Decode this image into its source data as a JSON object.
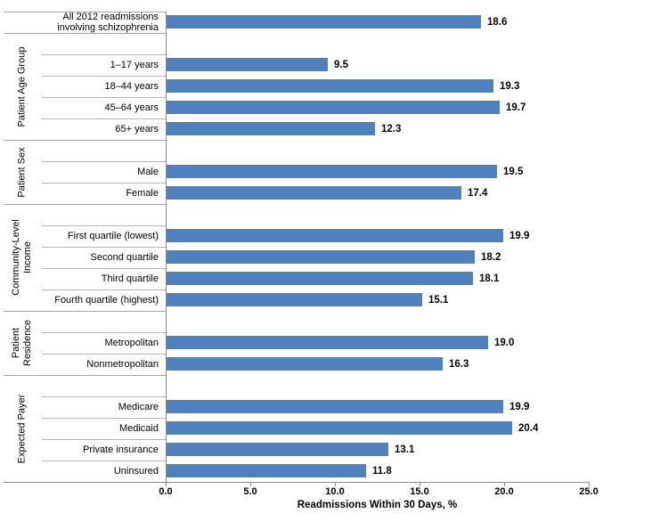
{
  "chart_data": {
    "type": "bar",
    "orientation": "horizontal",
    "xlabel": "Readmissions Within 30 Days, %",
    "xlim": [
      0,
      25
    ],
    "xtick_step": 5,
    "xticks": [
      "0.0",
      "5.0",
      "10.0",
      "15.0",
      "20.0",
      "25.0"
    ],
    "bar_color": "#4F81BD",
    "separator_color": "#A6A6A6",
    "axis_color": "#8C8C8C",
    "grid": false,
    "legend": false,
    "groups": [
      {
        "label": null,
        "spacer": false,
        "items": [
          {
            "label": "All 2012 readmissions\ninvolving schizophrenia",
            "value": 18.6,
            "value_label": "18.6"
          }
        ]
      },
      {
        "label": "Patient Age Group",
        "spacer": true,
        "items": [
          {
            "label": "1–17 years",
            "value": 9.5,
            "value_label": "9.5"
          },
          {
            "label": "18–44 years",
            "value": 19.3,
            "value_label": "19.3"
          },
          {
            "label": "45–64 years",
            "value": 19.7,
            "value_label": "19.7"
          },
          {
            "label": "65+ years",
            "value": 12.3,
            "value_label": "12.3"
          }
        ]
      },
      {
        "label": "Patient Sex",
        "spacer": true,
        "items": [
          {
            "label": "Male",
            "value": 19.5,
            "value_label": "19.5"
          },
          {
            "label": "Female",
            "value": 17.4,
            "value_label": "17.4"
          }
        ]
      },
      {
        "label": "Community-Level\nIncome",
        "spacer": true,
        "items": [
          {
            "label": "First quartile (lowest)",
            "value": 19.9,
            "value_label": "19.9"
          },
          {
            "label": "Second quartile",
            "value": 18.2,
            "value_label": "18.2"
          },
          {
            "label": "Third quartile",
            "value": 18.1,
            "value_label": "18.1"
          },
          {
            "label": "Fourth quartile (highest)",
            "value": 15.1,
            "value_label": "15.1"
          }
        ]
      },
      {
        "label": "Patient\nResidence",
        "spacer": true,
        "items": [
          {
            "label": "Metropolitan",
            "value": 19.0,
            "value_label": "19.0"
          },
          {
            "label": "Nonmetropolitan",
            "value": 16.3,
            "value_label": "16.3"
          }
        ]
      },
      {
        "label": "Expected Payer",
        "spacer": true,
        "items": [
          {
            "label": "Medicare",
            "value": 19.9,
            "value_label": "19.9"
          },
          {
            "label": "Medicaid",
            "value": 20.4,
            "value_label": "20.4"
          },
          {
            "label": "Private insurance",
            "value": 13.1,
            "value_label": "13.1"
          },
          {
            "label": "Uninsured",
            "value": 11.8,
            "value_label": "11.8"
          }
        ]
      }
    ]
  }
}
